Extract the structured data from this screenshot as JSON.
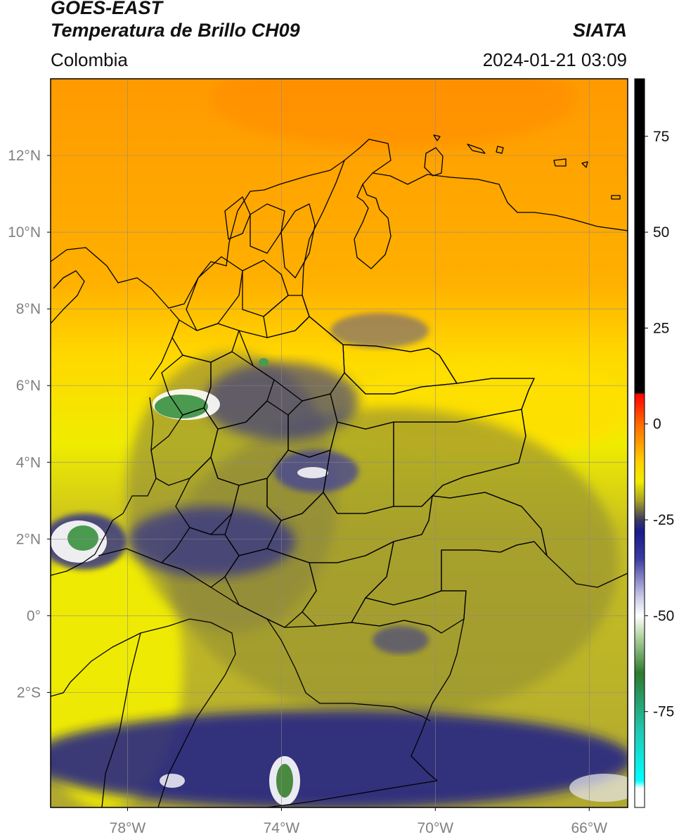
{
  "header": {
    "title_line1": "GOES-EAST",
    "title_line2": "Temperatura de Brillo CH09",
    "brand": "SIATA",
    "region": "Colombia",
    "datetime": "2024-01-21 03:09"
  },
  "map": {
    "projection": "lat-lon",
    "lon_range": [
      -80,
      -65
    ],
    "lat_range": [
      -5,
      14
    ],
    "lat_ticks": [
      {
        "value": 12,
        "label": "12°N"
      },
      {
        "value": 10,
        "label": "10°N"
      },
      {
        "value": 8,
        "label": "8°N"
      },
      {
        "value": 6,
        "label": "6°N"
      },
      {
        "value": 4,
        "label": "4°N"
      },
      {
        "value": 2,
        "label": "2°N"
      },
      {
        "value": 0,
        "label": "0°"
      },
      {
        "value": -2,
        "label": "2°S"
      }
    ],
    "lon_ticks": [
      {
        "value": -78,
        "label": "78°W"
      },
      {
        "value": -74,
        "label": "74°W"
      },
      {
        "value": -70,
        "label": "70°W"
      },
      {
        "value": -66,
        "label": "66°W"
      }
    ],
    "grid": true
  },
  "colorbar": {
    "range": [
      -100,
      90
    ],
    "ticks": [
      {
        "value": 75,
        "label": "75"
      },
      {
        "value": 50,
        "label": "50"
      },
      {
        "value": 25,
        "label": "25"
      },
      {
        "value": 0,
        "label": "0"
      },
      {
        "value": -25,
        "label": "-25"
      },
      {
        "value": -50,
        "label": "-50"
      },
      {
        "value": -75,
        "label": "-75"
      }
    ],
    "stops": [
      {
        "value": 90,
        "color": "#000000"
      },
      {
        "value": 8,
        "color": "#000000"
      },
      {
        "value": 7.9,
        "color": "#ff0000"
      },
      {
        "value": 0,
        "color": "#ff6a00"
      },
      {
        "value": -10,
        "color": "#ffd000"
      },
      {
        "value": -15,
        "color": "#f2ec00"
      },
      {
        "value": -20,
        "color": "#a8a028"
      },
      {
        "value": -25,
        "color": "#3a3a60"
      },
      {
        "value": -28,
        "color": "#1a1a8c"
      },
      {
        "value": -35,
        "color": "#3a3aa0"
      },
      {
        "value": -45,
        "color": "#c8c8e6"
      },
      {
        "value": -50,
        "color": "#ffffff"
      },
      {
        "value": -55,
        "color": "#b8d8a8"
      },
      {
        "value": -65,
        "color": "#2e7a2e"
      },
      {
        "value": -80,
        "color": "#20c8b0"
      },
      {
        "value": -93,
        "color": "#00ffff"
      },
      {
        "value": -95,
        "color": "#ffffff"
      },
      {
        "value": -100,
        "color": "#ffffff"
      }
    ]
  }
}
